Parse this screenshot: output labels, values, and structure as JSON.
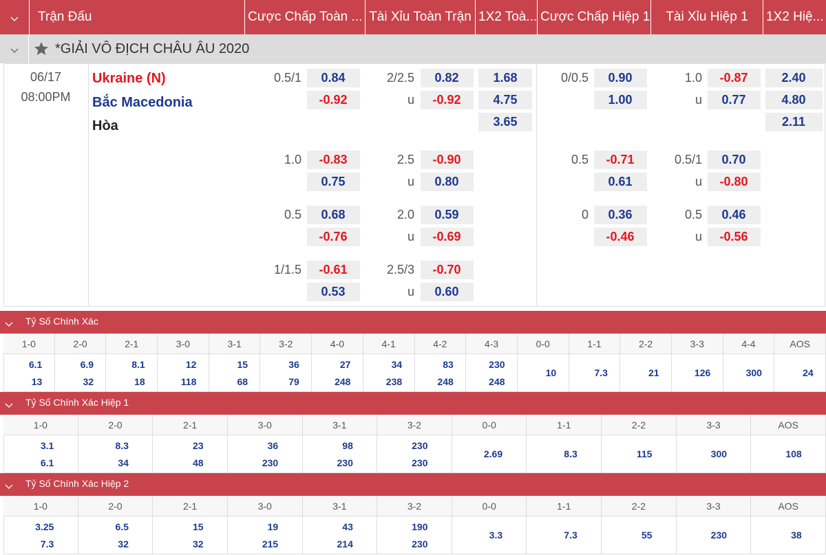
{
  "header": {
    "columns": [
      "Trận Đấu",
      "Cược Chấp Toàn ...",
      "Tài Xỉu Toàn Trận",
      "1X2 Toà...",
      "Cược Chấp Hiệp 1",
      "Tài Xỉu Hiệp 1",
      "1X2 Hiệ..."
    ]
  },
  "league": {
    "title": "*GIẢI VÔ ĐỊCH CHÂU ÂU 2020"
  },
  "match": {
    "date": "06/17",
    "time": "08:00PM",
    "teams": [
      "Ukraine (N)",
      "Bắc Macedonia",
      "Hòa"
    ],
    "groups": [
      {
        "full_handicap": {
          "line": "0.5/1",
          "home": "0.84",
          "away": "-0.92"
        },
        "full_ou": {
          "line": "2/2.5",
          "under_label": "u",
          "over": "0.82",
          "under": "-0.92"
        },
        "full_1x2": [
          "1.68",
          "4.75",
          "3.65"
        ],
        "half_handicap": {
          "line": "0/0.5",
          "home": "0.90",
          "away": "1.00"
        },
        "half_ou": {
          "line": "1.0",
          "under_label": "u",
          "over": "-0.87",
          "under": "0.77"
        },
        "half_1x2": [
          "2.40",
          "4.80",
          "2.11"
        ]
      },
      {
        "full_handicap": {
          "line": "1.0",
          "home": "-0.83",
          "away": "0.75"
        },
        "full_ou": {
          "line": "2.5",
          "under_label": "u",
          "over": "-0.90",
          "under": "0.80"
        },
        "half_handicap": {
          "line": "0.5",
          "home": "-0.71",
          "away": "0.61"
        },
        "half_ou": {
          "line": "0.5/1",
          "under_label": "u",
          "over": "0.70",
          "under": "-0.80"
        }
      },
      {
        "full_handicap": {
          "line": "0.5",
          "home": "0.68",
          "away": "-0.76"
        },
        "full_ou": {
          "line": "2.0",
          "under_label": "u",
          "over": "0.59",
          "under": "-0.69"
        },
        "half_handicap": {
          "line": "0",
          "home": "0.36",
          "away": "-0.46"
        },
        "half_ou": {
          "line": "0.5",
          "under_label": "u",
          "over": "0.46",
          "under": "-0.56"
        }
      },
      {
        "full_handicap": {
          "line": "1/1.5",
          "home": "-0.61",
          "away": "0.53"
        },
        "full_ou": {
          "line": "2.5/3",
          "under_label": "u",
          "over": "-0.70",
          "under": "0.60"
        }
      }
    ]
  },
  "score_sections": [
    {
      "title": "Tỷ Số Chính Xác",
      "labels": [
        "1-0",
        "2-0",
        "2-1",
        "3-0",
        "3-1",
        "3-2",
        "4-0",
        "4-1",
        "4-2",
        "4-3",
        "0-0",
        "1-1",
        "2-2",
        "3-3",
        "4-4",
        "AOS"
      ],
      "values": [
        [
          "6.1",
          "13"
        ],
        [
          "6.9",
          "32"
        ],
        [
          "8.1",
          "18"
        ],
        [
          "12",
          "118"
        ],
        [
          "15",
          "68"
        ],
        [
          "36",
          "79"
        ],
        [
          "27",
          "248"
        ],
        [
          "34",
          "238"
        ],
        [
          "83",
          "248"
        ],
        [
          "230",
          "248"
        ],
        [
          "10"
        ],
        [
          "7.3"
        ],
        [
          "21"
        ],
        [
          "126"
        ],
        [
          "300"
        ],
        [
          "24"
        ]
      ]
    },
    {
      "title": "Tỷ Số Chính Xác Hiệp 1",
      "labels": [
        "1-0",
        "2-0",
        "2-1",
        "3-0",
        "3-1",
        "3-2",
        "0-0",
        "1-1",
        "2-2",
        "3-3",
        "AOS"
      ],
      "values": [
        [
          "3.1",
          "6.1"
        ],
        [
          "8.3",
          "34"
        ],
        [
          "23",
          "48"
        ],
        [
          "36",
          "230"
        ],
        [
          "98",
          "230"
        ],
        [
          "230",
          "230"
        ],
        [
          "2.69"
        ],
        [
          "8.3"
        ],
        [
          "115"
        ],
        [
          "300"
        ],
        [
          "108"
        ]
      ]
    },
    {
      "title": "Tỷ Số Chính Xác Hiệp 2",
      "labels": [
        "1-0",
        "2-0",
        "2-1",
        "3-0",
        "3-1",
        "3-2",
        "0-0",
        "1-1",
        "2-2",
        "3-3",
        "AOS"
      ],
      "values": [
        [
          "3.25",
          "7.3"
        ],
        [
          "6.5",
          "32"
        ],
        [
          "15",
          "32"
        ],
        [
          "19",
          "215"
        ],
        [
          "43",
          "214"
        ],
        [
          "190",
          "230"
        ],
        [
          "3.3"
        ],
        [
          "7.3"
        ],
        [
          "55"
        ],
        [
          "230"
        ],
        [
          "38"
        ]
      ]
    }
  ]
}
